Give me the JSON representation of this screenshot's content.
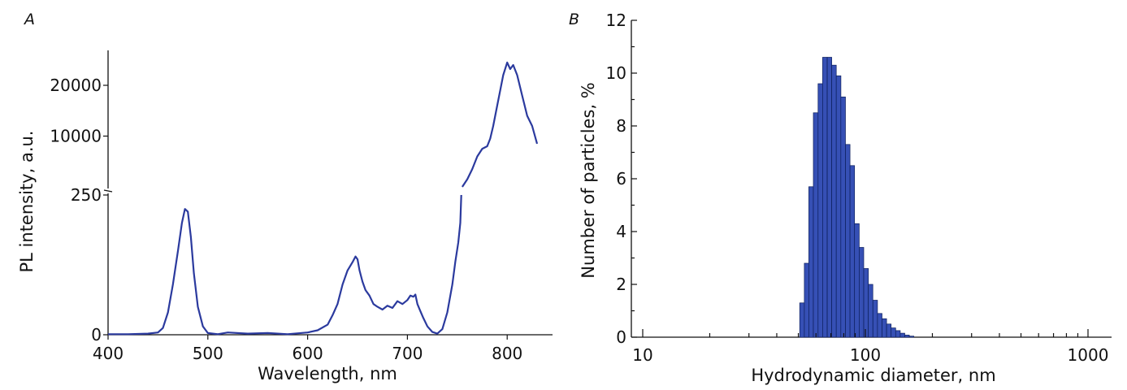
{
  "colors": {
    "line": "#2b3a9e",
    "bar": "#3650b5",
    "bar_edge": "#0d1f5c"
  },
  "chart_data": [
    {
      "panel": "A",
      "type": "line",
      "xlabel": "Wavelength, nm",
      "ylabel": "PL intensity, a.u.",
      "xlim": [
        400,
        850
      ],
      "x_ticks": [
        "400",
        "500",
        "600",
        "700",
        "800"
      ],
      "y_axis_break": true,
      "lower_ylim": [
        0,
        250
      ],
      "lower_y_ticks": [
        "0",
        "250"
      ],
      "upper_ylim": [
        0,
        27000
      ],
      "upper_y_ticks": [
        "10000",
        "20000"
      ],
      "series": [
        {
          "x": [
            400,
            420,
            440,
            450,
            455,
            460,
            465,
            470,
            474,
            477,
            480,
            483,
            486,
            490,
            495,
            500,
            505,
            510,
            520,
            540,
            560,
            580,
            600,
            610,
            620,
            625,
            630,
            635,
            640,
            645,
            648,
            650,
            652,
            655,
            658,
            662,
            666,
            670,
            675,
            680,
            685,
            690,
            695,
            700,
            703,
            706,
            708,
            710,
            713,
            716,
            720,
            725,
            730,
            735,
            740,
            745,
            748,
            751,
            753,
            754
          ],
          "y": [
            1,
            1,
            2,
            4,
            12,
            40,
            90,
            150,
            200,
            225,
            220,
            175,
            110,
            50,
            15,
            3,
            2,
            1,
            4,
            2,
            3,
            1,
            4,
            8,
            18,
            35,
            55,
            90,
            115,
            130,
            140,
            135,
            115,
            95,
            80,
            70,
            55,
            50,
            45,
            52,
            48,
            60,
            55,
            62,
            70,
            68,
            72,
            55,
            42,
            30,
            15,
            5,
            2,
            10,
            40,
            90,
            130,
            165,
            200,
            250
          ]
        },
        {
          "x": [
            755,
            760,
            765,
            770,
            775,
            780,
            783,
            786,
            790,
            793,
            796,
            800,
            803,
            806,
            810,
            815,
            820,
            825,
            830
          ],
          "y": [
            0,
            1500,
            3500,
            6000,
            7500,
            8000,
            9500,
            12000,
            16000,
            19000,
            22000,
            24500,
            23200,
            24000,
            22000,
            18000,
            14000,
            12000,
            8500
          ]
        }
      ]
    },
    {
      "panel": "B",
      "type": "bar",
      "xlabel": "Hydrodynamic diameter, nm",
      "ylabel": "Number of particles, %",
      "x_scale": "log",
      "xlim": [
        9,
        1200
      ],
      "ylim": [
        0,
        12
      ],
      "x_ticks": [
        "10",
        "100",
        "1000"
      ],
      "y_ticks": [
        "0",
        "2",
        "4",
        "6",
        "8",
        "10",
        "12"
      ],
      "bin_edges": [
        50.7,
        53.2,
        55.7,
        58.4,
        61.3,
        64.3,
        67.4,
        70.6,
        74.0,
        77.6,
        81.4,
        85.3,
        89.4,
        93.8,
        98.3,
        103.1,
        108.1,
        113.3,
        118.8,
        124.5,
        130.5,
        136.8,
        143.4,
        150.3,
        157.6,
        165.2
      ],
      "values": [
        1.3,
        2.8,
        5.7,
        8.5,
        9.6,
        10.6,
        10.6,
        10.3,
        9.9,
        9.1,
        7.3,
        6.5,
        4.3,
        3.4,
        2.6,
        2.0,
        1.4,
        0.9,
        0.7,
        0.5,
        0.35,
        0.25,
        0.15,
        0.08,
        0.04
      ]
    }
  ]
}
